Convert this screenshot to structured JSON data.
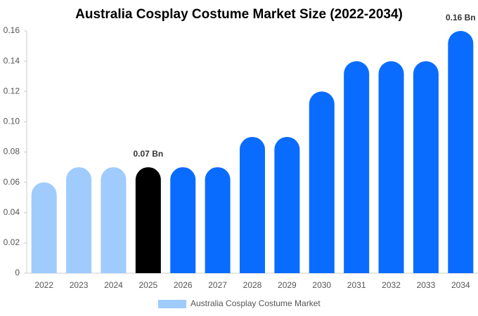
{
  "chart_data": {
    "type": "bar",
    "title": "Australia Cosplay Costume Market Size (2022-2034)",
    "categories": [
      "2022",
      "2023",
      "2024",
      "2025",
      "2026",
      "2027",
      "2028",
      "2029",
      "2030",
      "2031",
      "2032",
      "2033",
      "2034"
    ],
    "series": [
      {
        "name": "Australia Cosplay Costume Market",
        "color": "#a0cbfd",
        "colors": [
          "#a0cbfd",
          "#a0cbfd",
          "#a0cbfd",
          "#000000",
          "#0a6cff",
          "#0a6cff",
          "#0a6cff",
          "#0a6cff",
          "#0a6cff",
          "#0a6cff",
          "#0a6cff",
          "#0a6cff",
          "#0a6cff"
        ],
        "values": [
          0.06,
          0.07,
          0.07,
          0.07,
          0.07,
          0.07,
          0.09,
          0.09,
          0.12,
          0.14,
          0.14,
          0.14,
          0.16
        ],
        "value_labels": [
          null,
          null,
          null,
          "0.07 Bn",
          null,
          null,
          null,
          null,
          null,
          null,
          null,
          null,
          "0.16 Bn"
        ]
      }
    ],
    "ylim": [
      0,
      0.16
    ],
    "yticks": [
      0,
      0.02,
      0.04,
      0.06,
      0.08,
      {
        "value": 0.1,
        "label": "0.10"
      },
      0.12,
      0.14,
      0.16
    ],
    "grid": false,
    "legend": "bottom"
  }
}
